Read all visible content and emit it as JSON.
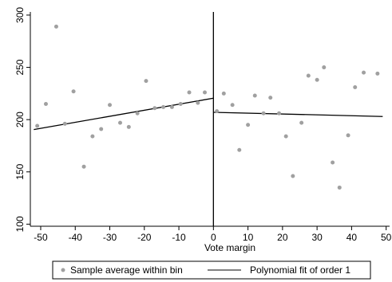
{
  "chart_data": {
    "type": "scatter",
    "title": "",
    "xlabel": "Vote margin",
    "ylabel": "",
    "xlim": [
      -53,
      51
    ],
    "ylim": [
      98,
      303
    ],
    "x_ticks": [
      -50,
      -40,
      -30,
      -20,
      -10,
      0,
      10,
      20,
      30,
      40,
      50
    ],
    "x_tick_labels": [
      "-50",
      "-40",
      "-30",
      "-20",
      "-10",
      "0",
      "10",
      "20",
      "30",
      "40",
      "50"
    ],
    "y_ticks": [
      100,
      150,
      200,
      250,
      300
    ],
    "y_tick_labels": [
      "100",
      "150",
      "200",
      "250",
      "300"
    ],
    "threshold_x": 0,
    "grid": false,
    "legend_position": "bottom",
    "series": [
      {
        "name": "Sample average within bin",
        "kind": "scatter",
        "color": "#a0a0a0",
        "points": [
          [
            -51,
            194
          ],
          [
            -48.5,
            215
          ],
          [
            -45.5,
            289
          ],
          [
            -43,
            196
          ],
          [
            -40.5,
            227
          ],
          [
            -37.5,
            155
          ],
          [
            -35,
            184
          ],
          [
            -32.5,
            191
          ],
          [
            -30,
            214
          ],
          [
            -27,
            197
          ],
          [
            -24.5,
            193
          ],
          [
            -22,
            206
          ],
          [
            -19.5,
            237
          ],
          [
            -17,
            211
          ],
          [
            -14.5,
            212
          ],
          [
            -12,
            212
          ],
          [
            -9.5,
            215
          ],
          [
            -7,
            226
          ],
          [
            -4.5,
            216
          ],
          [
            -2.5,
            226
          ],
          [
            1,
            208
          ],
          [
            3,
            225
          ],
          [
            5.5,
            214
          ],
          [
            7.5,
            171
          ],
          [
            10,
            195
          ],
          [
            12,
            223
          ],
          [
            14.5,
            206
          ],
          [
            16.5,
            221
          ],
          [
            19,
            206
          ],
          [
            21,
            184
          ],
          [
            23,
            146
          ],
          [
            25.5,
            197
          ],
          [
            27.5,
            242
          ],
          [
            30,
            238
          ],
          [
            32,
            250
          ],
          [
            34.5,
            159
          ],
          [
            36.5,
            135
          ],
          [
            39,
            185
          ],
          [
            41,
            231
          ],
          [
            43.5,
            245
          ],
          [
            47.5,
            244
          ]
        ]
      },
      {
        "name": "Polynomial fit of order 1",
        "kind": "line",
        "color": "#000000",
        "segments": [
          [
            [
              -52,
              190.5
            ],
            [
              0,
              220.5
            ]
          ],
          [
            [
              0,
              207
            ],
            [
              49,
              203
            ]
          ]
        ]
      }
    ]
  }
}
